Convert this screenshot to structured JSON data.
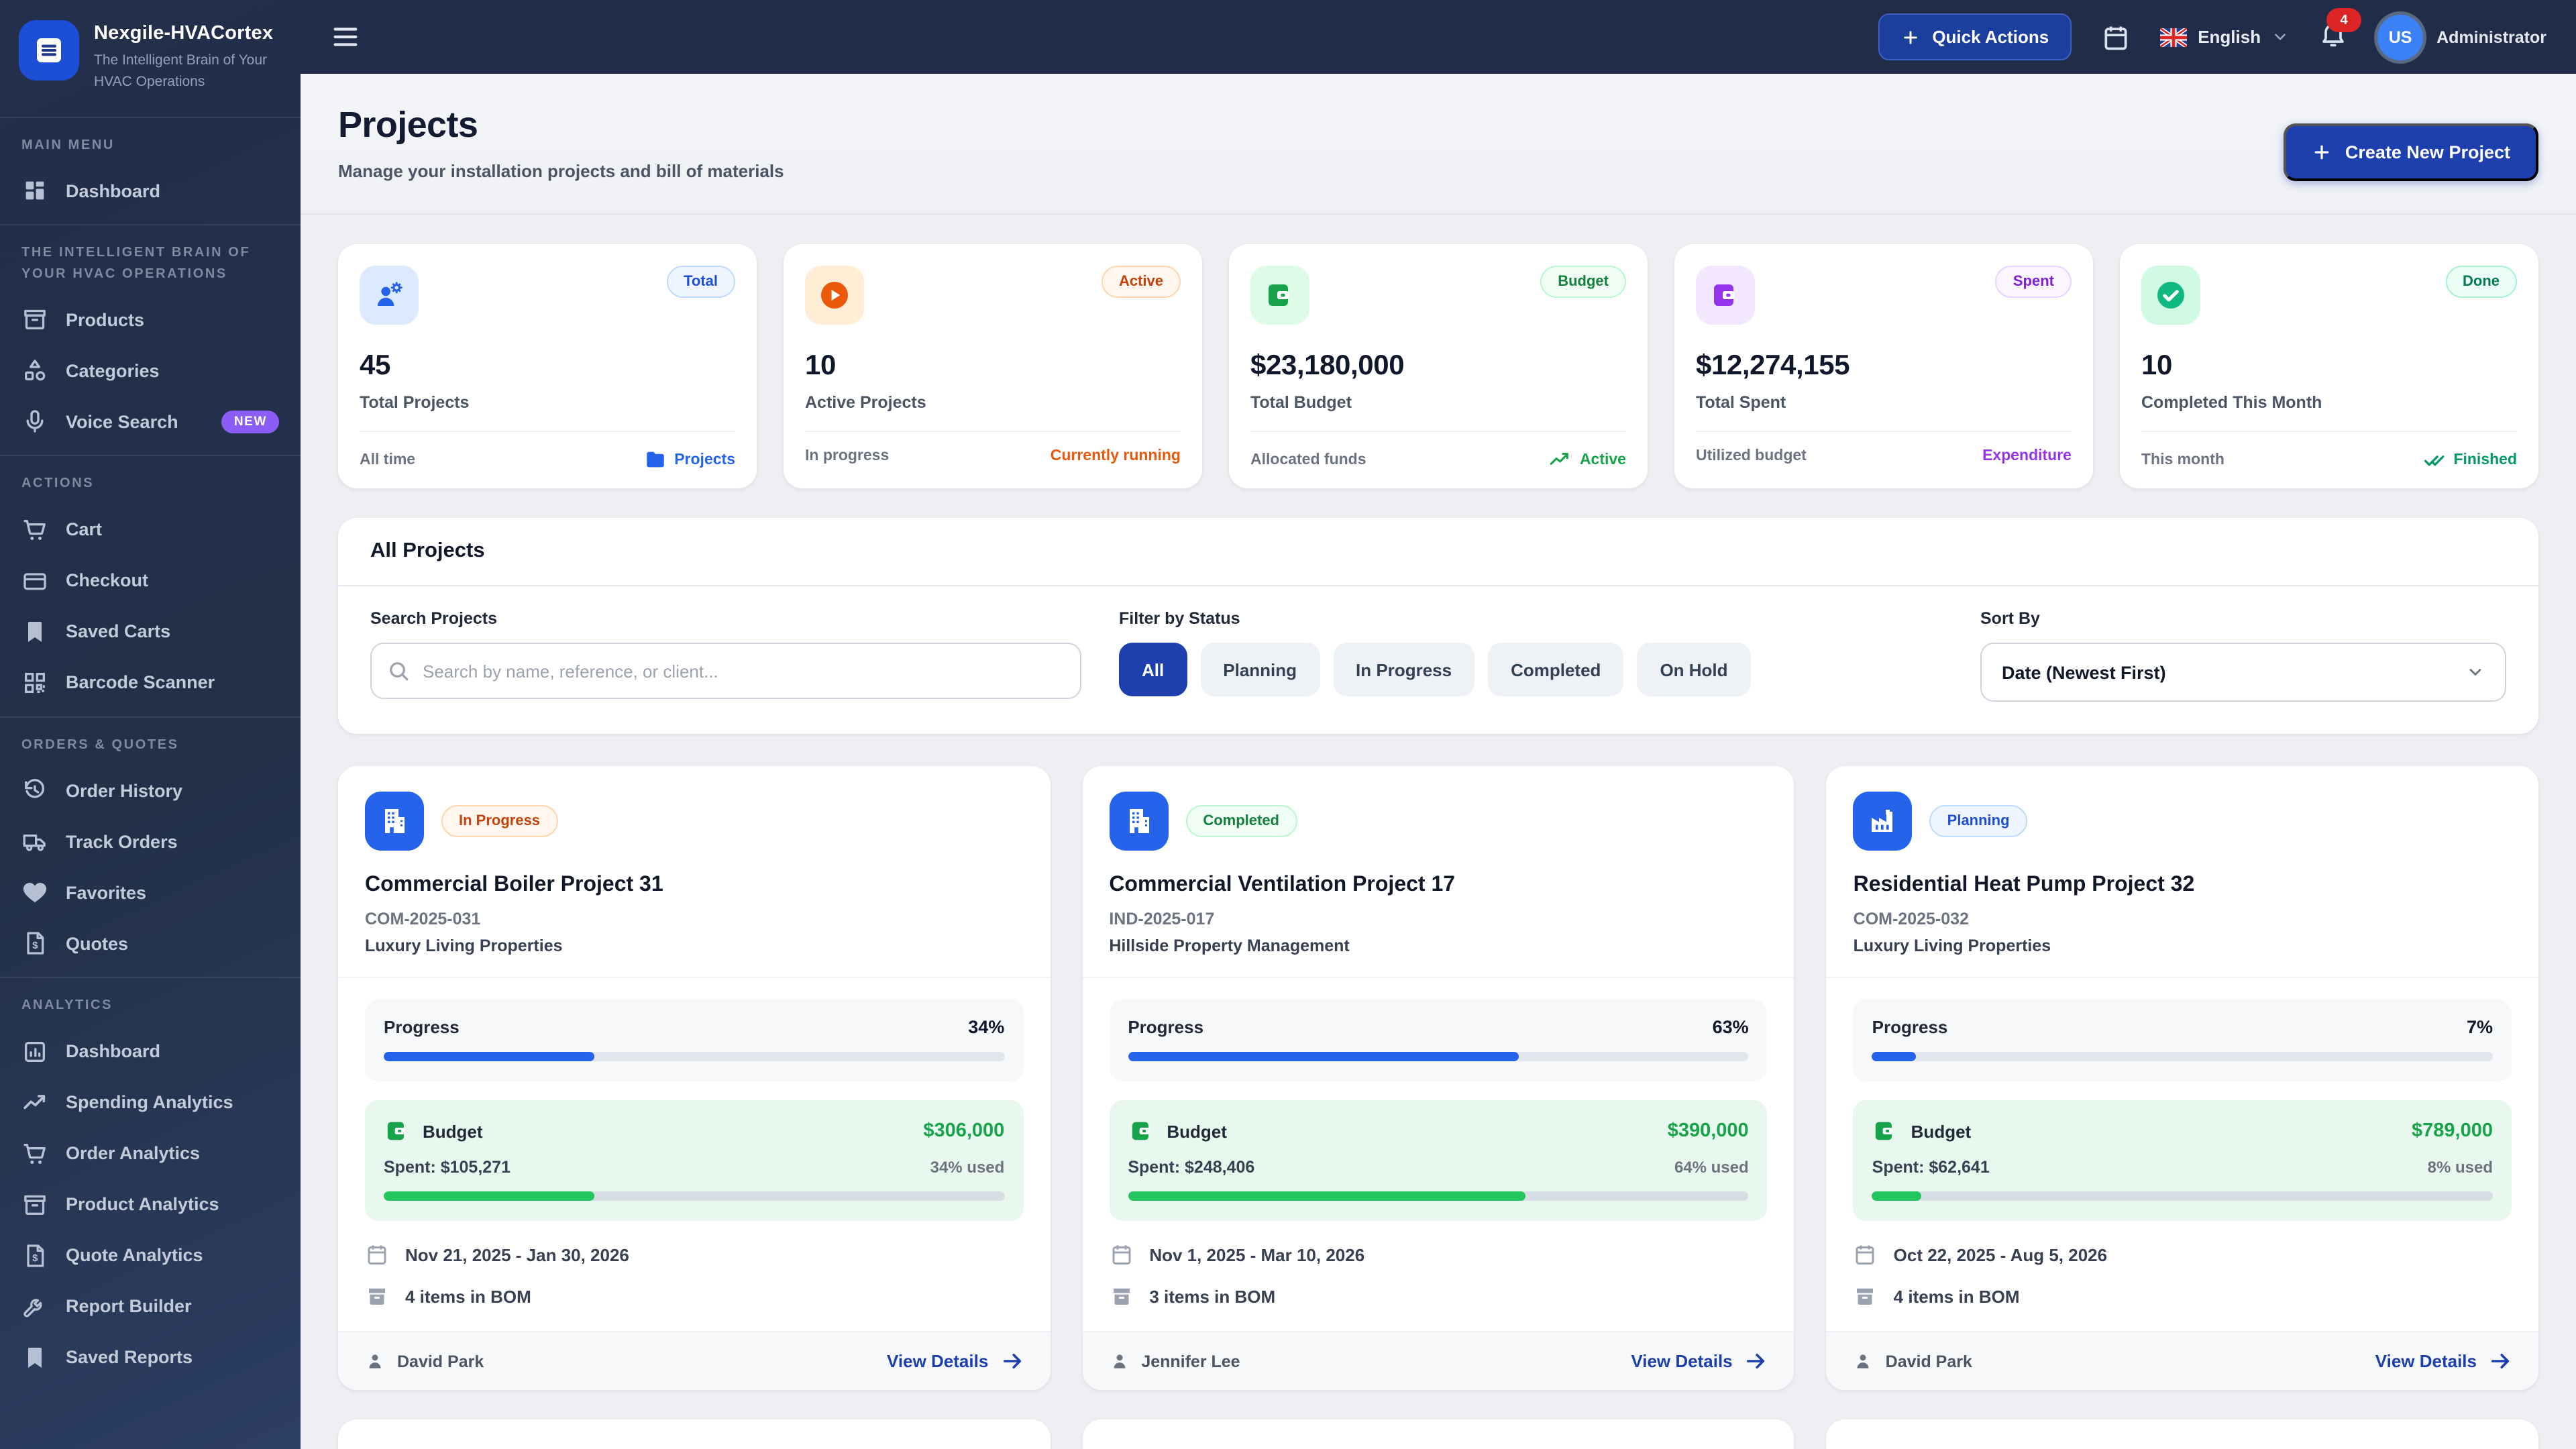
{
  "sidebar": {
    "logo": {
      "title": "Nexgile-HVACortex",
      "subtitle": "The Intelligent Brain of Your HVAC Operations"
    },
    "sections": [
      {
        "label": "MAIN MENU",
        "items": [
          {
            "label": "Dashboard",
            "icon": "grid"
          }
        ]
      },
      {
        "label": "THE INTELLIGENT BRAIN OF YOUR HVAC OPERATIONS",
        "items": [
          {
            "label": "Products",
            "icon": "box"
          },
          {
            "label": "Categories",
            "icon": "shapes"
          },
          {
            "label": "Voice Search",
            "icon": "mic",
            "badge": "NEW"
          }
        ]
      },
      {
        "label": "ACTIONS",
        "items": [
          {
            "label": "Cart",
            "icon": "cart"
          },
          {
            "label": "Checkout",
            "icon": "credit-card"
          },
          {
            "label": "Saved Carts",
            "icon": "bookmark"
          },
          {
            "label": "Barcode Scanner",
            "icon": "qr"
          }
        ]
      },
      {
        "label": "ORDERS & QUOTES",
        "items": [
          {
            "label": "Order History",
            "icon": "history"
          },
          {
            "label": "Track Orders",
            "icon": "truck"
          },
          {
            "label": "Favorites",
            "icon": "heart"
          },
          {
            "label": "Quotes",
            "icon": "file-dollar"
          }
        ]
      },
      {
        "label": "ANALYTICS",
        "items": [
          {
            "label": "Dashboard",
            "icon": "chart-square"
          },
          {
            "label": "Spending Analytics",
            "icon": "trend-up"
          },
          {
            "label": "Order Analytics",
            "icon": "cart"
          },
          {
            "label": "Product Analytics",
            "icon": "box"
          },
          {
            "label": "Quote Analytics",
            "icon": "file-dollar"
          },
          {
            "label": "Report Builder",
            "icon": "wrench"
          },
          {
            "label": "Saved Reports",
            "icon": "bookmark"
          }
        ]
      }
    ]
  },
  "header": {
    "quick_actions_label": "Quick Actions",
    "language_label": "English",
    "notification_count": "4",
    "avatar_initials": "US",
    "user_label": "Administrator"
  },
  "page": {
    "title": "Projects",
    "subtitle": "Manage your installation projects and bill of materials",
    "create_button_label": "Create New Project"
  },
  "stats": [
    {
      "variant": "blue",
      "icon": "engineer",
      "badge": "Total",
      "value": "45",
      "label": "Total Projects",
      "foot_left": "All time",
      "foot_right": "Projects",
      "foot_icon": "folder",
      "foot_is_link": true
    },
    {
      "variant": "orange",
      "icon": "play-circle",
      "badge": "Active",
      "value": "10",
      "label": "Active Projects",
      "foot_left": "In progress",
      "foot_right": "Currently running",
      "foot_icon": "",
      "foot_is_link": false
    },
    {
      "variant": "green",
      "icon": "wallet",
      "badge": "Budget",
      "value": "$23,180,000",
      "label": "Total Budget",
      "foot_left": "Allocated funds",
      "foot_right": "Active",
      "foot_icon": "trend-up",
      "foot_is_link": false
    },
    {
      "variant": "purple",
      "icon": "wallet",
      "badge": "Spent",
      "value": "$12,274,155",
      "label": "Total Spent",
      "foot_left": "Utilized budget",
      "foot_right": "Expenditure",
      "foot_icon": "",
      "foot_is_link": false
    },
    {
      "variant": "emerald",
      "icon": "check-circle",
      "badge": "Done",
      "value": "10",
      "label": "Completed This Month",
      "foot_left": "This month",
      "foot_right": "Finished",
      "foot_icon": "double-check",
      "foot_is_link": false
    }
  ],
  "filters": {
    "panel_title": "All Projects",
    "search_label": "Search Projects",
    "search_placeholder": "Search by name, reference, or client...",
    "status_label": "Filter by Status",
    "status_options": [
      "All",
      "Planning",
      "In Progress",
      "Completed",
      "On Hold"
    ],
    "active_index": 0,
    "sort_label": "Sort By",
    "sort_value": "Date (Newest First)"
  },
  "projects": [
    {
      "icon": "building",
      "status": "In Progress",
      "status_variant": "orange",
      "title": "Commercial Boiler Project 31",
      "reference": "COM-2025-031",
      "client": "Luxury Living Properties",
      "progress_label": "Progress",
      "progress": "34%",
      "progress_pct": 34,
      "budget_label": "Budget",
      "budget": "$306,000",
      "spent": "Spent: $105,271",
      "used": "34% used",
      "used_pct": 34,
      "dates": "Nov 21, 2025 - Jan 30, 2026",
      "bom": "4 items in BOM",
      "owner": "David Park",
      "details_label": "View Details"
    },
    {
      "icon": "building",
      "status": "Completed",
      "status_variant": "green",
      "title": "Commercial Ventilation Project 17",
      "reference": "IND-2025-017",
      "client": "Hillside Property Management",
      "progress_label": "Progress",
      "progress": "63%",
      "progress_pct": 63,
      "budget_label": "Budget",
      "budget": "$390,000",
      "spent": "Spent: $248,406",
      "used": "64% used",
      "used_pct": 64,
      "dates": "Nov 1, 2025 - Mar 10, 2026",
      "bom": "3 items in BOM",
      "owner": "Jennifer Lee",
      "details_label": "View Details"
    },
    {
      "icon": "factory",
      "status": "Planning",
      "status_variant": "blue",
      "title": "Residential Heat Pump Project 32",
      "reference": "COM-2025-032",
      "client": "Luxury Living Properties",
      "progress_label": "Progress",
      "progress": "7%",
      "progress_pct": 7,
      "budget_label": "Budget",
      "budget": "$789,000",
      "spent": "Spent: $62,641",
      "used": "8% used",
      "used_pct": 8,
      "dates": "Oct 22, 2025 - Aug 5, 2026",
      "bom": "4 items in BOM",
      "owner": "David Park",
      "details_label": "View Details"
    }
  ],
  "palette": {
    "blue": {
      "tile_bg": "#dbeafe",
      "tile_fg": "#2563eb",
      "badge_bg": "#eff6ff",
      "badge_fg": "#1d4ed8",
      "badge_bd": "#bfdbfe",
      "foot_fg": "#2563eb"
    },
    "orange": {
      "tile_bg": "#ffedd5",
      "tile_fg": "#ea580c",
      "badge_bg": "#fff7ed",
      "badge_fg": "#c2410c",
      "badge_bd": "#fed7aa",
      "foot_fg": "#ea580c"
    },
    "green": {
      "tile_bg": "#dcfce7",
      "tile_fg": "#16a34a",
      "badge_bg": "#f0fdf4",
      "badge_fg": "#15803d",
      "badge_bd": "#bbf7d0",
      "foot_fg": "#16a34a"
    },
    "purple": {
      "tile_bg": "#f3e8ff",
      "tile_fg": "#9333ea",
      "badge_bg": "#faf5ff",
      "badge_fg": "#7e22ce",
      "badge_bd": "#e9d5ff",
      "foot_fg": "#9333ea"
    },
    "emerald": {
      "tile_bg": "#d1fae5",
      "tile_fg": "#10b981",
      "badge_bg": "#ecfdf5",
      "badge_fg": "#047857",
      "badge_bd": "#a7f3d0",
      "foot_fg": "#059669"
    }
  },
  "colors": {
    "sidebar_bg": "#232f4b",
    "header_bg": "#202c48",
    "accent_blue": "#2563eb",
    "deep_blue": "#1e40af",
    "new_badge": "#8b5cf6",
    "danger": "#dc2626",
    "progress_blue": "#2563eb",
    "budget_green": "#22c55e"
  }
}
